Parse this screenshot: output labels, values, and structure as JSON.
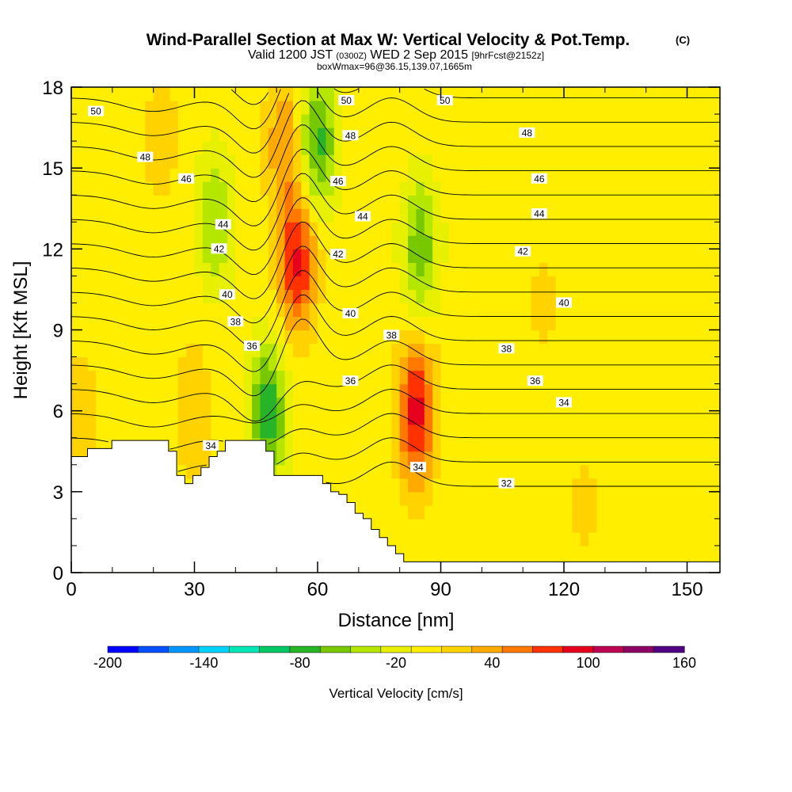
{
  "chart_data": {
    "type": "contour",
    "title": "Wind-Parallel Section at Max W: Vertical Velocity & Pot.Temp.",
    "title_mark": "(C)",
    "subtitle": {
      "main_a": "Valid 1200 JST",
      "utc": "(0300Z)",
      "main_b": "WED 2 Sep 2015",
      "forecast": "[9hrFcst@2152z]"
    },
    "subtitle2": "boxWmax=96@36.15,139.07,1665m",
    "xlabel": "Distance [nm]",
    "ylabel": "Height [Kft MSL]",
    "xlim": [
      0,
      158
    ],
    "ylim": [
      0,
      18
    ],
    "x_ticks": [
      "0",
      "30",
      "60",
      "90",
      "120",
      "150"
    ],
    "y_ticks": [
      "0",
      "3",
      "6",
      "9",
      "12",
      "15",
      "18"
    ],
    "colorbar": {
      "label": "Vertical Velocity [cm/s]",
      "tick_labels": [
        "-200",
        "-140",
        "-80",
        "-20",
        "40",
        "100",
        "160"
      ],
      "levels": [
        -200,
        -180,
        -160,
        -140,
        -120,
        -100,
        -80,
        -60,
        -40,
        -20,
        0,
        20,
        40,
        60,
        80,
        100,
        120,
        140,
        160
      ],
      "colors": [
        "#0000ff",
        "#0050ff",
        "#0096ff",
        "#00d2ff",
        "#00e6b4",
        "#00c864",
        "#28b428",
        "#78c800",
        "#b4e600",
        "#e6f000",
        "#ffee00",
        "#ffd200",
        "#ffaa00",
        "#ff7800",
        "#ff3200",
        "#e6001e",
        "#be0050",
        "#8c0064",
        "#500082"
      ]
    },
    "background_velocity_cm_s": 10,
    "velocity_features": [
      {
        "x": 55,
        "y": 11.5,
        "value": 105
      },
      {
        "x": 52,
        "y": 16,
        "value": 60
      },
      {
        "x": 84,
        "y": 6,
        "value": 110
      },
      {
        "x": 48,
        "y": 6,
        "value": -75
      },
      {
        "x": 60,
        "y": 16,
        "value": -70
      },
      {
        "x": 85,
        "y": 12,
        "value": -55
      },
      {
        "x": 35,
        "y": 13,
        "value": -40
      },
      {
        "x": 22,
        "y": 16,
        "value": 30
      },
      {
        "x": 30,
        "y": 6,
        "value": 35
      },
      {
        "x": 115,
        "y": 10,
        "value": 25
      },
      {
        "x": 125,
        "y": 2.5,
        "value": 25
      },
      {
        "x": 2,
        "y": 6,
        "value": 30
      }
    ],
    "theta_contours": {
      "labels": [
        {
          "text": "50",
          "x": 6,
          "y": 17.1
        },
        {
          "text": "48",
          "x": 18,
          "y": 15.4
        },
        {
          "text": "46",
          "x": 28,
          "y": 14.6
        },
        {
          "text": "44",
          "x": 37,
          "y": 12.9
        },
        {
          "text": "42",
          "x": 36,
          "y": 12
        },
        {
          "text": "40",
          "x": 38,
          "y": 10.3
        },
        {
          "text": "38",
          "x": 40,
          "y": 9.3
        },
        {
          "text": "36",
          "x": 44,
          "y": 8.4
        },
        {
          "text": "34",
          "x": 34,
          "y": 4.7
        },
        {
          "text": "50",
          "x": 67,
          "y": 17.5
        },
        {
          "text": "48",
          "x": 68,
          "y": 16.2
        },
        {
          "text": "46",
          "x": 65,
          "y": 14.5
        },
        {
          "text": "44",
          "x": 71,
          "y": 13.2
        },
        {
          "text": "42",
          "x": 65,
          "y": 11.8
        },
        {
          "text": "40",
          "x": 68,
          "y": 9.6
        },
        {
          "text": "38",
          "x": 78,
          "y": 8.8
        },
        {
          "text": "36",
          "x": 68,
          "y": 7.1
        },
        {
          "text": "34",
          "x": 84.5,
          "y": 3.9
        },
        {
          "text": "50",
          "x": 91,
          "y": 17.5
        },
        {
          "text": "48",
          "x": 111,
          "y": 16.3
        },
        {
          "text": "46",
          "x": 114,
          "y": 14.6
        },
        {
          "text": "44",
          "x": 114,
          "y": 13.3
        },
        {
          "text": "42",
          "x": 110,
          "y": 11.9
        },
        {
          "text": "40",
          "x": 120,
          "y": 10
        },
        {
          "text": "38",
          "x": 106,
          "y": 8.3
        },
        {
          "text": "36",
          "x": 113,
          "y": 7.1
        },
        {
          "text": "34",
          "x": 120,
          "y": 6.3
        },
        {
          "text": "32",
          "x": 106,
          "y": 3.3
        }
      ]
    },
    "terrain_top_kft": [
      4.3,
      4.3,
      4.6,
      4.6,
      4.6,
      4.9,
      4.9,
      4.9,
      4.9,
      4.9,
      4.9,
      4.9,
      4.5,
      3.6,
      3.3,
      3.6,
      3.9,
      4.3,
      4.5,
      4.9,
      4.9,
      4.9,
      4.9,
      4.9,
      4.5,
      3.6,
      3.6,
      3.6,
      3.6,
      3.6,
      3.6,
      3.3,
      3.0,
      2.9,
      2.6,
      2.2,
      2.0,
      1.6,
      1.3,
      1.0,
      0.7,
      0.4,
      0.4,
      0.4,
      0.4,
      0.4,
      0.4,
      0.4,
      0.4,
      0.4,
      0.4,
      0.4,
      0.4,
      0.4,
      0.4,
      0.4,
      0.4,
      0.4,
      0.4,
      0.4,
      0.4,
      0.4,
      0.4,
      0.4,
      0.4,
      0.4,
      0.4,
      0.4,
      0.4,
      0.4,
      0.4,
      0.4,
      0.4,
      0.4,
      0.4,
      0.4,
      0.4,
      0.4,
      0.4,
      0.4
    ]
  }
}
